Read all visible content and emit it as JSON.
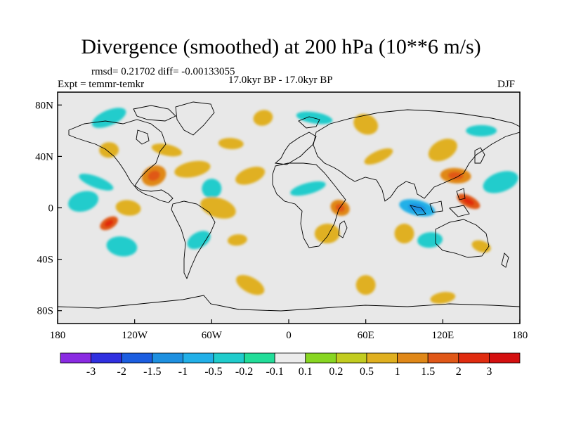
{
  "title": "Divergence (smoothed) at 200 hPa (10**6 m/s)",
  "stats_text": "rmsd= 0.21702 diff= -0.00133055",
  "expt_text": "Expt = temmr-temkr",
  "period_text": "17.0kyr BP - 17.0kyr BP",
  "season_text": "DJF",
  "map": {
    "lon_range": [
      -180,
      180
    ],
    "lat_range": [
      -90,
      90
    ],
    "lat_ticks": [
      {
        "value": 80,
        "label": "80N"
      },
      {
        "value": 40,
        "label": "40N"
      },
      {
        "value": 0,
        "label": "0"
      },
      {
        "value": -40,
        "label": "40S"
      },
      {
        "value": -80,
        "label": "80S"
      }
    ],
    "lon_ticks": [
      {
        "value": -180,
        "label": "180"
      },
      {
        "value": -120,
        "label": "120W"
      },
      {
        "value": -60,
        "label": "60W"
      },
      {
        "value": 0,
        "label": "0"
      },
      {
        "value": 60,
        "label": "60E"
      },
      {
        "value": 120,
        "label": "120E"
      },
      {
        "value": 180,
        "label": "180"
      }
    ],
    "background_color": "#e8e8e8"
  },
  "colorbar": {
    "labels": [
      "-3",
      "-2",
      "-1.5",
      "-1",
      "-0.5",
      "-0.2",
      "-0.1",
      "0.1",
      "0.2",
      "0.5",
      "1",
      "1.5",
      "2",
      "3"
    ],
    "colors": [
      "#8a2be2",
      "#3030e0",
      "#1c5ee0",
      "#1e90e0",
      "#22b0e8",
      "#20cccc",
      "#22dd99",
      "#ececec",
      "#88d622",
      "#c2cc20",
      "#e0b020",
      "#e08818",
      "#e05818",
      "#e02c10",
      "#d41010"
    ]
  },
  "chart_data": {
    "type": "heatmap",
    "title": "Divergence (smoothed) at 200 hPa (10**6 m/s)",
    "units": "10**6 m/s",
    "projection": "cylindrical equidistant",
    "color_levels": [
      -3,
      -2,
      -1.5,
      -1,
      -0.5,
      -0.2,
      -0.1,
      0.1,
      0.2,
      0.5,
      1,
      1.5,
      2,
      3
    ],
    "features": [
      {
        "lon": -140,
        "lat": -12,
        "value": 1.5
      },
      {
        "lon": -125,
        "lat": 0,
        "value": 0.5
      },
      {
        "lon": -160,
        "lat": 5,
        "value": -0.5
      },
      {
        "lon": -150,
        "lat": 20,
        "value": -0.5
      },
      {
        "lon": -140,
        "lat": 45,
        "value": 0.5
      },
      {
        "lon": -105,
        "lat": 25,
        "value": 1
      },
      {
        "lon": -95,
        "lat": 45,
        "value": 0.5
      },
      {
        "lon": -75,
        "lat": 30,
        "value": 0.5
      },
      {
        "lon": -60,
        "lat": 15,
        "value": -0.5
      },
      {
        "lon": -45,
        "lat": 50,
        "value": 0.5
      },
      {
        "lon": -30,
        "lat": 25,
        "value": 0.5
      },
      {
        "lon": -55,
        "lat": 0,
        "value": 0.5
      },
      {
        "lon": -40,
        "lat": -25,
        "value": 0.5
      },
      {
        "lon": -70,
        "lat": -25,
        "value": -0.5
      },
      {
        "lon": -130,
        "lat": -30,
        "value": -0.5
      },
      {
        "lon": 15,
        "lat": 15,
        "value": -0.5
      },
      {
        "lon": 40,
        "lat": 0,
        "value": 1
      },
      {
        "lon": 30,
        "lat": -20,
        "value": 0.5
      },
      {
        "lon": 70,
        "lat": 40,
        "value": 0.5
      },
      {
        "lon": 100,
        "lat": 0,
        "value": -1
      },
      {
        "lon": 90,
        "lat": -20,
        "value": 0.5
      },
      {
        "lon": 140,
        "lat": 5,
        "value": 1.5
      },
      {
        "lon": 130,
        "lat": 25,
        "value": 1
      },
      {
        "lon": 165,
        "lat": 20,
        "value": -0.5
      },
      {
        "lon": 150,
        "lat": -30,
        "value": 0.5
      },
      {
        "lon": 110,
        "lat": -25,
        "value": -0.5
      },
      {
        "lon": 120,
        "lat": 45,
        "value": 0.5
      },
      {
        "lon": 20,
        "lat": 70,
        "value": -0.5
      },
      {
        "lon": -20,
        "lat": 70,
        "value": 0.5
      },
      {
        "lon": 60,
        "lat": 65,
        "value": 0.5
      },
      {
        "lon": 150,
        "lat": 60,
        "value": -0.5
      },
      {
        "lon": -140,
        "lat": 70,
        "value": -0.5
      },
      {
        "lon": 60,
        "lat": -60,
        "value": 0.5
      },
      {
        "lon": 120,
        "lat": -70,
        "value": 0.5
      },
      {
        "lon": -30,
        "lat": -60,
        "value": 0.5
      }
    ]
  }
}
